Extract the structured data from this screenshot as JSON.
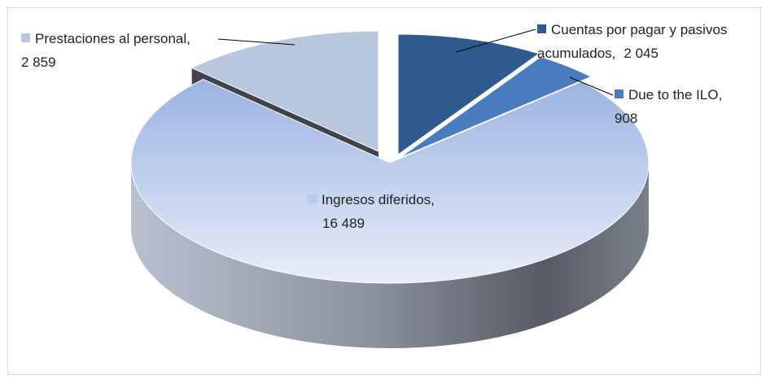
{
  "chart_data": {
    "type": "pie",
    "categories": [
      "Cuentas por pagar y pasivos acumulados,",
      "Due to the ILO,",
      "Ingresos diferidos,",
      "Prestaciones al personal,"
    ],
    "values": [
      2045,
      908,
      16489,
      2859
    ],
    "value_labels": [
      "2 045",
      "908",
      "16 489",
      "2 859"
    ],
    "colors": [
      "#2f5a8e",
      "#4a7bbf",
      "#b7c9ec",
      "#b8c6de"
    ],
    "three_d": true
  }
}
